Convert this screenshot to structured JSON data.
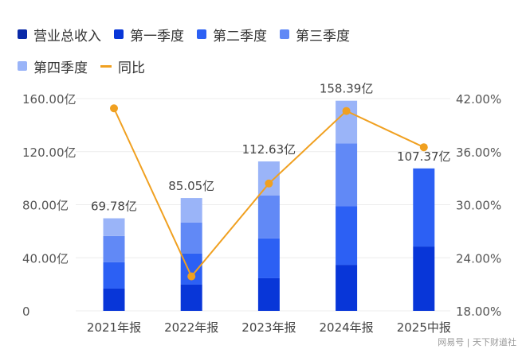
{
  "chart_data": {
    "type": "bar",
    "categories": [
      "2021年报",
      "2022年报",
      "2023年报",
      "2024年报",
      "2025中报"
    ],
    "series": [
      {
        "name": "第一季度",
        "color": "#0836d8",
        "values": [
          16.8,
          19.8,
          24.6,
          34.7,
          48.5
        ]
      },
      {
        "name": "第二季度",
        "color": "#2c60f4",
        "values": [
          19.8,
          23.4,
          30.0,
          44.3,
          58.87
        ]
      },
      {
        "name": "第三季度",
        "color": "#6189f6",
        "values": [
          19.8,
          23.4,
          32.3,
          47.3,
          null
        ]
      },
      {
        "name": "第四季度",
        "color": "#9ab4f8",
        "values": [
          13.38,
          18.45,
          25.73,
          32.09,
          null
        ]
      }
    ],
    "total": {
      "name": "营业总收入",
      "color": "#0a2aa8",
      "values": [
        69.78,
        85.05,
        112.63,
        158.39,
        107.37
      ],
      "labels": [
        "69.78亿",
        "85.05亿",
        "112.63亿",
        "158.39亿",
        "107.37亿"
      ]
    },
    "line": {
      "name": "同比",
      "color": "#f0a020",
      "values": [
        40.9,
        21.9,
        32.4,
        40.6,
        36.5
      ]
    },
    "y_left": {
      "range": [
        0,
        160
      ],
      "ticks": [
        "0",
        "40.00亿",
        "80.00亿",
        "120.00亿",
        "160.00亿"
      ]
    },
    "y_right": {
      "range": [
        18,
        42
      ],
      "ticks": [
        "18.00%",
        "24.00%",
        "30.00%",
        "36.00%",
        "42.00%"
      ]
    },
    "legend_position": "top-left",
    "grid": true
  },
  "watermark": "网易号 | 天下财道社"
}
